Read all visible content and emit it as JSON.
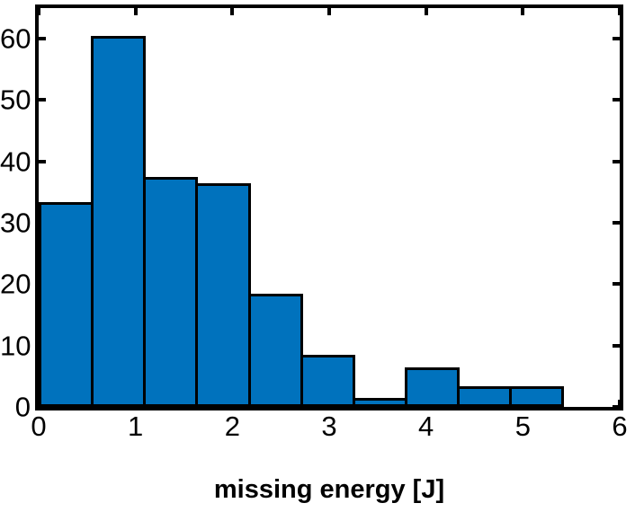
{
  "chart_data": {
    "type": "bar",
    "subtype": "histogram",
    "title": "",
    "xlabel": "missing energy [J]",
    "ylabel": "",
    "xlim": [
      0,
      6
    ],
    "ylim": [
      0,
      65
    ],
    "x_ticks": [
      0,
      1,
      2,
      3,
      4,
      5,
      6
    ],
    "x_tick_labels": [
      "0",
      "1",
      "2",
      "3",
      "4",
      "5",
      "6"
    ],
    "y_ticks": [
      0,
      10,
      20,
      30,
      40,
      50,
      60
    ],
    "y_tick_labels": [
      "0",
      "10",
      "20",
      "30",
      "40",
      "50",
      "60"
    ],
    "bin_edges": [
      0,
      0.54,
      1.08,
      1.62,
      2.16,
      2.7,
      3.24,
      3.78,
      4.32,
      4.86,
      5.4
    ],
    "values": [
      33,
      60,
      37,
      36,
      18,
      8,
      1,
      6,
      3,
      3
    ],
    "grid": false,
    "legend": null,
    "colors": {
      "bar_fill": "#0072BD",
      "bar_edge": "#000000",
      "axis": "#000000",
      "text": "#000000",
      "background": "#FFFFFF"
    }
  }
}
